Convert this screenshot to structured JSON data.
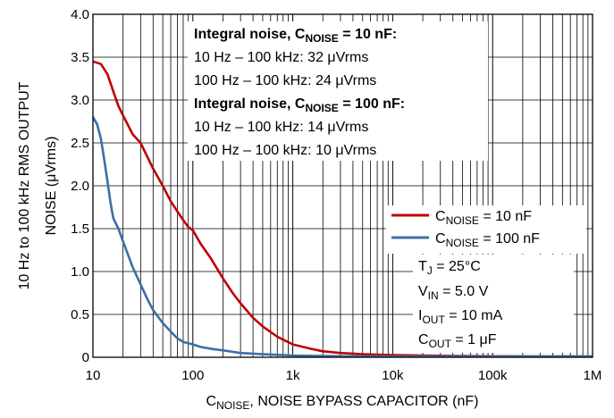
{
  "chart_data": {
    "type": "line",
    "x_scale": "log",
    "xlim": [
      10,
      1000000
    ],
    "ylim": [
      0,
      4.0
    ],
    "grid": true,
    "x_ticks": [
      "10",
      "100",
      "1k",
      "10k",
      "100k",
      "1M"
    ],
    "y_ticks": [
      "0",
      "0.5",
      "1.0",
      "1.5",
      "2.0",
      "2.5",
      "3.0",
      "3.5",
      "4.0"
    ],
    "xlabel": {
      "prefix": "C",
      "sub": "NOISE",
      "suffix": ", NOISE BYPASS CAPACITOR (nF)"
    },
    "ylabel_line1": "10 Hz to 100 kHz RMS OUTPUT",
    "ylabel_line2": "NOISE (μVrms)",
    "series": [
      {
        "name": "10 nF",
        "legend_prefix": "C",
        "legend_sub": "NOISE",
        "legend_suffix": " = 10 nF",
        "color": "#c00000",
        "x": [
          10,
          12,
          14,
          16,
          18,
          20,
          25,
          30,
          40,
          50,
          60,
          70,
          80,
          90,
          100,
          120,
          150,
          200,
          250,
          300,
          400,
          500,
          700,
          1000,
          1500,
          2000,
          3000,
          5000,
          7000,
          10000,
          20000,
          50000,
          100000,
          300000,
          1000000
        ],
        "y": [
          3.45,
          3.42,
          3.3,
          3.1,
          2.93,
          2.82,
          2.6,
          2.5,
          2.2,
          2.0,
          1.82,
          1.7,
          1.6,
          1.52,
          1.48,
          1.32,
          1.16,
          0.92,
          0.75,
          0.63,
          0.46,
          0.36,
          0.24,
          0.15,
          0.1,
          0.07,
          0.05,
          0.035,
          0.03,
          0.025,
          0.02,
          0.015,
          0.012,
          0.01,
          0.01
        ]
      },
      {
        "name": "100 nF",
        "legend_prefix": "C",
        "legend_sub": "NOISE",
        "legend_suffix": " = 100 nF",
        "color": "#3c6ea8",
        "x": [
          10,
          11,
          12,
          13,
          14,
          15,
          16,
          18,
          20,
          25,
          30,
          35,
          40,
          50,
          60,
          70,
          80,
          100,
          120,
          150,
          200,
          300,
          500,
          1000,
          2000,
          5000,
          10000,
          100000,
          1000000
        ],
        "y": [
          2.8,
          2.72,
          2.55,
          2.3,
          2.05,
          1.8,
          1.62,
          1.5,
          1.35,
          1.05,
          0.85,
          0.68,
          0.55,
          0.4,
          0.3,
          0.22,
          0.18,
          0.15,
          0.12,
          0.1,
          0.08,
          0.05,
          0.035,
          0.02,
          0.015,
          0.01,
          0.01,
          0.01,
          0.01
        ]
      }
    ],
    "annotations": {
      "heading1": {
        "prefix": "Integral noise, C",
        "sub": "NOISE",
        "suffix": " = 10 nF:"
      },
      "line1": "10 Hz – 100 kHz: 32 μVrms",
      "line2": "100 Hz – 100 kHz: 24 μVrms",
      "heading2": {
        "prefix": "Integral noise, C",
        "sub": "NOISE",
        "suffix": " = 100 nF:"
      },
      "line3": "10 Hz – 100 kHz: 14 μVrms",
      "line4": "100 Hz – 100 kHz: 10 μVrms"
    },
    "conditions": {
      "tj": {
        "prefix": "T",
        "sub": "J",
        "suffix": " = 25°C"
      },
      "vin": {
        "prefix": "V",
        "sub": "IN",
        "suffix": " = 5.0 V"
      },
      "iout": {
        "prefix": "I",
        "sub": "OUT",
        "suffix": " = 10 mA"
      },
      "cout": {
        "prefix": "C",
        "sub": "OUT",
        "suffix": " = 1 μF"
      }
    }
  }
}
